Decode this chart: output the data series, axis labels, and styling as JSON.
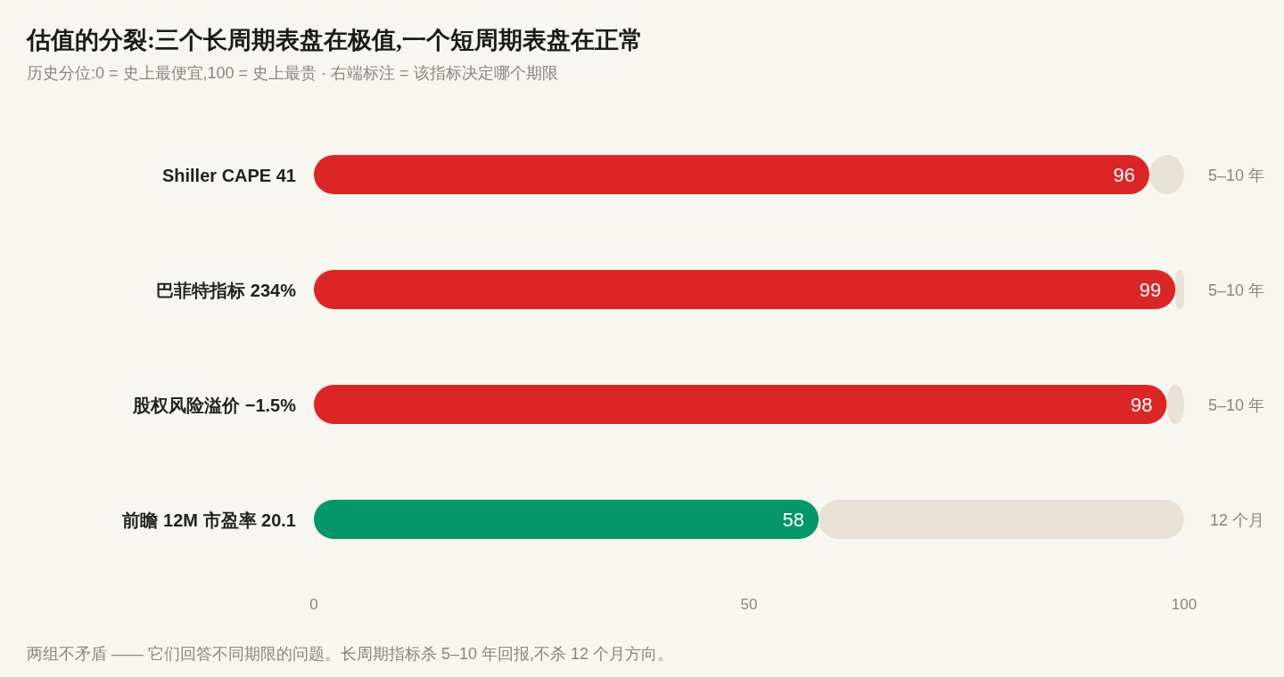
{
  "chart_data": {
    "type": "bar",
    "orientation": "horizontal",
    "stacked": true,
    "title": "估值的分裂:三个长周期表盘在极值,一个短周期表盘在正常",
    "subtitle": "历史分位:0 = 史上最便宜,100 = 史上最贵 · 右端标注 = 该指标决定哪个期限",
    "categories": [
      "Shiller CAPE 41",
      "巴菲特指标 234%",
      "股权风险溢价 −1.5%",
      "前瞻 12M 市盈率 20.1"
    ],
    "series": [
      {
        "colors": [
          "#dc2626",
          "#dc2626",
          "#dc2626",
          "#059669"
        ],
        "values": [
          96,
          99,
          98,
          58
        ],
        "value_labels": [
          "96",
          "99",
          "98",
          "58"
        ]
      },
      {
        "color": "#e8e1d6",
        "values": [
          4,
          1,
          2,
          42
        ]
      }
    ],
    "xlim": [
      0,
      100
    ],
    "xticks": [
      0,
      50,
      100
    ],
    "grid": false,
    "annotations": [
      "5–10 年",
      "5–10 年",
      "5–10 年",
      "12 个月",
      "两组不矛盾 —— 它们回答不同期限的问题。长周期指标杀 5–10 年回报,不杀 12 个月方向。"
    ]
  }
}
